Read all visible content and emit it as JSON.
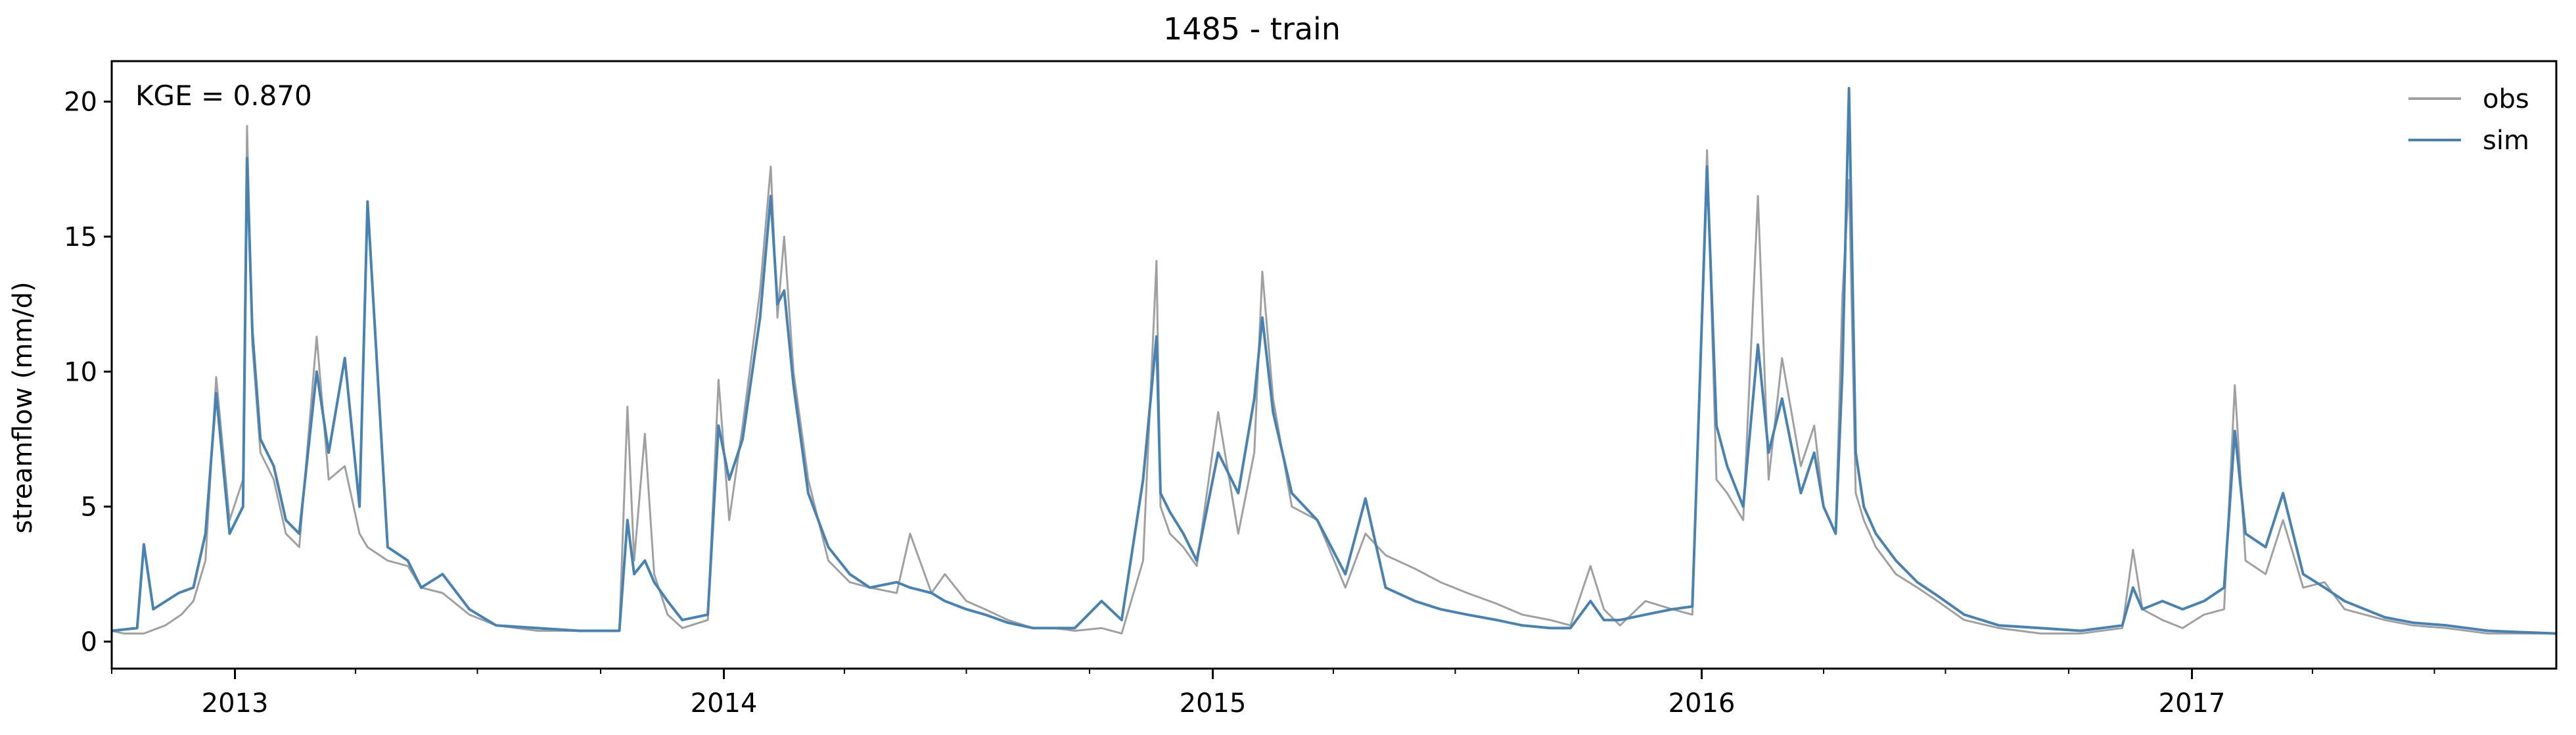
{
  "chart_data": {
    "type": "line",
    "title": "1485 - train",
    "xlabel": "",
    "ylabel": "streamflow (mm/d)",
    "xlim": [
      "2012-10-01",
      "2017-09-30"
    ],
    "ylim": [
      -1.0,
      21.5
    ],
    "y_ticks": [
      0,
      5,
      10,
      15,
      20
    ],
    "x_ticks": [
      "2013-01-01",
      "2014-01-01",
      "2015-01-01",
      "2016-01-01",
      "2017-01-01"
    ],
    "x_tick_labels": [
      "2013",
      "2014",
      "2015",
      "2016",
      "2017"
    ],
    "grid": false,
    "legend_position": "top-right",
    "annotation": "KGE = 0.870",
    "colors": {
      "obs": "#a0a0a0",
      "sim": "#4682b4"
    },
    "series": [
      {
        "name": "obs",
        "x": [
          "2012-10-01",
          "2012-10-10",
          "2012-10-25",
          "2012-11-10",
          "2012-11-22",
          "2012-12-01",
          "2012-12-10",
          "2012-12-18",
          "2012-12-28",
          "2013-01-07",
          "2013-01-10",
          "2013-01-14",
          "2013-01-20",
          "2013-01-30",
          "2013-02-08",
          "2013-02-18",
          "2013-03-03",
          "2013-03-12",
          "2013-03-24",
          "2013-04-04",
          "2013-04-10",
          "2013-04-25",
          "2013-05-10",
          "2013-05-20",
          "2013-06-05",
          "2013-06-25",
          "2013-07-15",
          "2013-08-15",
          "2013-09-15",
          "2013-10-15",
          "2013-10-21",
          "2013-10-26",
          "2013-11-03",
          "2013-11-10",
          "2013-11-20",
          "2013-12-01",
          "2013-12-20",
          "2013-12-28",
          "2014-01-05",
          "2014-01-15",
          "2014-01-28",
          "2014-02-05",
          "2014-02-10",
          "2014-02-15",
          "2014-02-22",
          "2014-03-05",
          "2014-03-20",
          "2014-04-05",
          "2014-04-20",
          "2014-05-10",
          "2014-05-20",
          "2014-06-05",
          "2014-06-15",
          "2014-07-01",
          "2014-07-15",
          "2014-08-01",
          "2014-08-20",
          "2014-09-05",
          "2014-09-20",
          "2014-10-10",
          "2014-10-25",
          "2014-11-10",
          "2014-11-20",
          "2014-11-23",
          "2014-11-30",
          "2014-12-10",
          "2014-12-20",
          "2015-01-05",
          "2015-01-20",
          "2015-02-01",
          "2015-02-07",
          "2015-02-15",
          "2015-03-01",
          "2015-03-20",
          "2015-04-10",
          "2015-04-25",
          "2015-05-10",
          "2015-06-01",
          "2015-06-20",
          "2015-07-10",
          "2015-08-01",
          "2015-08-20",
          "2015-09-10",
          "2015-09-25",
          "2015-10-10",
          "2015-10-20",
          "2015-11-01",
          "2015-11-20",
          "2015-12-10",
          "2015-12-25",
          "2016-01-05",
          "2016-01-12",
          "2016-01-20",
          "2016-02-01",
          "2016-02-12",
          "2016-02-20",
          "2016-03-01",
          "2016-03-15",
          "2016-03-25",
          "2016-04-01",
          "2016-04-10",
          "2016-04-15",
          "2016-04-20",
          "2016-04-25",
          "2016-05-01",
          "2016-05-10",
          "2016-05-25",
          "2016-06-10",
          "2016-06-25",
          "2016-07-15",
          "2016-08-10",
          "2016-09-10",
          "2016-10-10",
          "2016-11-10",
          "2016-11-18",
          "2016-11-25",
          "2016-12-10",
          "2016-12-25",
          "2017-01-10",
          "2017-01-25",
          "2017-02-02",
          "2017-02-10",
          "2017-02-25",
          "2017-03-10",
          "2017-03-25",
          "2017-04-10",
          "2017-04-25",
          "2017-05-10",
          "2017-05-25",
          "2017-06-15",
          "2017-07-10",
          "2017-08-10",
          "2017-09-30"
        ],
        "y": [
          0.4,
          0.3,
          0.3,
          0.6,
          1.0,
          1.5,
          3.0,
          9.8,
          4.5,
          6.0,
          19.1,
          11.0,
          7.0,
          6.0,
          4.0,
          3.5,
          11.3,
          6.0,
          6.5,
          4.0,
          3.5,
          3.0,
          2.8,
          2.0,
          1.8,
          1.0,
          0.6,
          0.4,
          0.4,
          0.4,
          8.7,
          3.0,
          7.7,
          2.5,
          1.0,
          0.5,
          0.8,
          9.7,
          4.5,
          8.0,
          13.0,
          17.6,
          12.0,
          15.0,
          10.0,
          6.0,
          3.0,
          2.2,
          2.0,
          1.8,
          4.0,
          1.8,
          2.5,
          1.5,
          1.2,
          0.8,
          0.5,
          0.5,
          0.4,
          0.5,
          0.3,
          3.0,
          14.1,
          5.0,
          4.0,
          3.5,
          2.8,
          8.5,
          4.0,
          7.0,
          13.7,
          9.0,
          5.0,
          4.5,
          2.0,
          4.0,
          3.2,
          2.7,
          2.2,
          1.8,
          1.4,
          1.0,
          0.8,
          0.6,
          2.8,
          1.2,
          0.6,
          1.5,
          1.2,
          1.0,
          18.2,
          6.0,
          5.5,
          4.5,
          16.5,
          6.0,
          10.5,
          6.5,
          8.0,
          5.0,
          4.0,
          12.8,
          17.1,
          5.5,
          4.5,
          3.5,
          2.5,
          2.0,
          1.5,
          0.8,
          0.5,
          0.3,
          0.3,
          0.5,
          3.4,
          1.2,
          0.8,
          0.5,
          1.0,
          1.2,
          9.5,
          3.0,
          2.5,
          4.5,
          2.0,
          2.2,
          1.2,
          1.0,
          0.8,
          0.6,
          0.5,
          0.3,
          0.3
        ]
      },
      {
        "name": "sim",
        "x": [
          "2012-10-01",
          "2012-10-20",
          "2012-10-25",
          "2012-11-01",
          "2012-11-20",
          "2012-12-01",
          "2012-12-10",
          "2012-12-18",
          "2012-12-28",
          "2013-01-07",
          "2013-01-10",
          "2013-01-14",
          "2013-01-20",
          "2013-01-30",
          "2013-02-08",
          "2013-02-18",
          "2013-03-03",
          "2013-03-12",
          "2013-03-24",
          "2013-04-04",
          "2013-04-10",
          "2013-04-25",
          "2013-05-10",
          "2013-05-20",
          "2013-06-05",
          "2013-06-25",
          "2013-07-15",
          "2013-08-15",
          "2013-09-15",
          "2013-10-15",
          "2013-10-21",
          "2013-10-26",
          "2013-11-03",
          "2013-11-10",
          "2013-11-20",
          "2013-12-01",
          "2013-12-20",
          "2013-12-28",
          "2014-01-05",
          "2014-01-15",
          "2014-01-28",
          "2014-02-05",
          "2014-02-10",
          "2014-02-15",
          "2014-02-22",
          "2014-03-05",
          "2014-03-20",
          "2014-04-05",
          "2014-04-20",
          "2014-05-10",
          "2014-05-20",
          "2014-06-05",
          "2014-06-15",
          "2014-07-01",
          "2014-07-15",
          "2014-08-01",
          "2014-08-20",
          "2014-09-05",
          "2014-09-20",
          "2014-10-10",
          "2014-10-25",
          "2014-11-10",
          "2014-11-20",
          "2014-11-23",
          "2014-11-30",
          "2014-12-10",
          "2014-12-20",
          "2015-01-05",
          "2015-01-20",
          "2015-02-01",
          "2015-02-07",
          "2015-02-15",
          "2015-03-01",
          "2015-03-20",
          "2015-04-10",
          "2015-04-25",
          "2015-05-10",
          "2015-06-01",
          "2015-06-20",
          "2015-07-10",
          "2015-08-01",
          "2015-08-20",
          "2015-09-10",
          "2015-09-25",
          "2015-10-10",
          "2015-10-20",
          "2015-11-01",
          "2015-11-20",
          "2015-12-10",
          "2015-12-25",
          "2016-01-05",
          "2016-01-12",
          "2016-01-20",
          "2016-02-01",
          "2016-02-12",
          "2016-02-20",
          "2016-03-01",
          "2016-03-15",
          "2016-03-25",
          "2016-04-01",
          "2016-04-10",
          "2016-04-15",
          "2016-04-20",
          "2016-04-25",
          "2016-05-01",
          "2016-05-10",
          "2016-05-25",
          "2016-06-10",
          "2016-06-25",
          "2016-07-15",
          "2016-08-10",
          "2016-09-10",
          "2016-10-10",
          "2016-11-10",
          "2016-11-18",
          "2016-11-25",
          "2016-12-10",
          "2016-12-25",
          "2017-01-10",
          "2017-01-25",
          "2017-02-02",
          "2017-02-10",
          "2017-02-25",
          "2017-03-10",
          "2017-03-25",
          "2017-04-10",
          "2017-04-25",
          "2017-05-10",
          "2017-05-25",
          "2017-06-15",
          "2017-07-10",
          "2017-08-10",
          "2017-09-30"
        ],
        "y": [
          0.4,
          0.5,
          3.6,
          1.2,
          1.8,
          2.0,
          4.0,
          9.2,
          4.0,
          5.0,
          17.9,
          11.5,
          7.5,
          6.5,
          4.5,
          4.0,
          10.0,
          7.0,
          10.5,
          5.0,
          16.3,
          3.5,
          3.0,
          2.0,
          2.5,
          1.2,
          0.6,
          0.5,
          0.4,
          0.4,
          4.5,
          2.5,
          3.0,
          2.2,
          1.5,
          0.8,
          1.0,
          8.0,
          6.0,
          7.5,
          12.0,
          16.5,
          12.5,
          13.0,
          9.5,
          5.5,
          3.5,
          2.5,
          2.0,
          2.2,
          2.0,
          1.8,
          1.5,
          1.2,
          1.0,
          0.7,
          0.5,
          0.5,
          0.5,
          1.5,
          0.8,
          6.0,
          11.3,
          5.5,
          4.8,
          4.0,
          3.0,
          7.0,
          5.5,
          9.0,
          12.0,
          8.5,
          5.5,
          4.5,
          2.5,
          5.3,
          2.0,
          1.5,
          1.2,
          1.0,
          0.8,
          0.6,
          0.5,
          0.5,
          1.5,
          0.8,
          0.8,
          1.0,
          1.2,
          1.3,
          17.6,
          8.0,
          6.5,
          5.0,
          11.0,
          7.0,
          9.0,
          5.5,
          7.0,
          5.0,
          4.0,
          10.0,
          20.5,
          7.0,
          5.0,
          4.0,
          3.0,
          2.2,
          1.7,
          1.0,
          0.6,
          0.5,
          0.4,
          0.6,
          2.0,
          1.2,
          1.5,
          1.2,
          1.5,
          2.0,
          7.8,
          4.0,
          3.5,
          5.5,
          2.5,
          2.0,
          1.5,
          1.2,
          0.9,
          0.7,
          0.6,
          0.4,
          0.3
        ]
      }
    ]
  }
}
